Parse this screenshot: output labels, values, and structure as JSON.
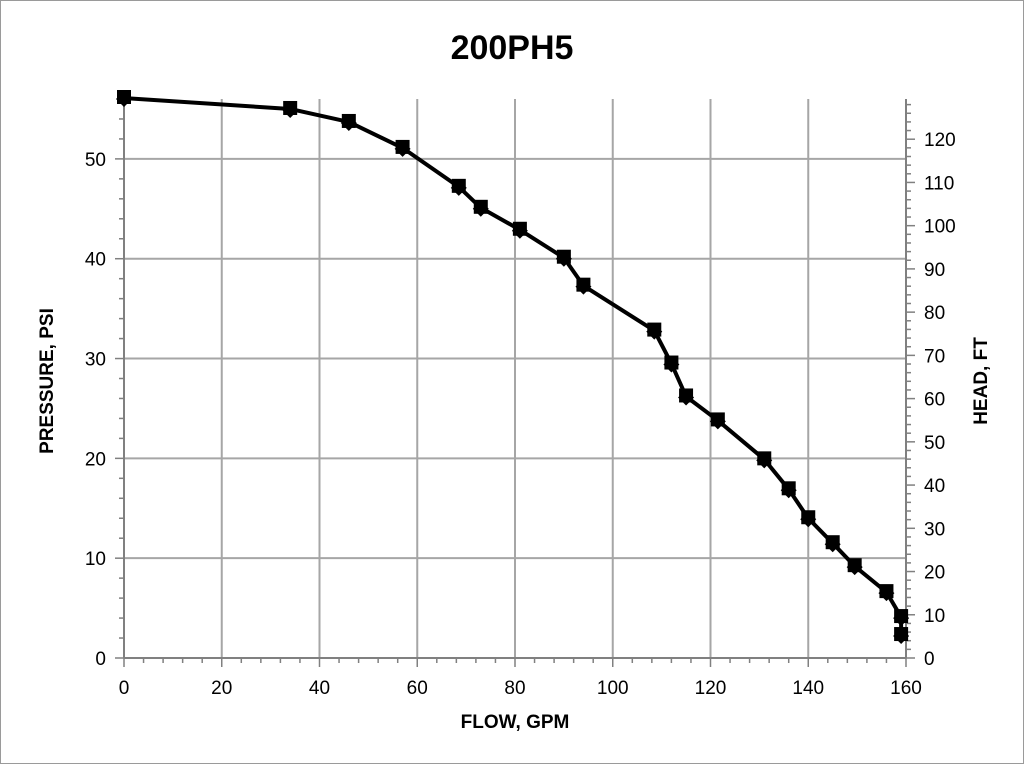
{
  "chart_data": {
    "type": "line",
    "title": "200PH5",
    "xlabel": "FLOW, GPM",
    "ylabel": "PRESSURE, PSI",
    "y2label": "HEAD, FT",
    "xlim": [
      0,
      160
    ],
    "ylim": [
      0,
      56
    ],
    "y2lim": [
      0,
      129.3
    ],
    "x_ticks": [
      "0",
      "20",
      "40",
      "60",
      "80",
      "100",
      "120",
      "140",
      "160"
    ],
    "y_ticks": [
      "0",
      "10",
      "20",
      "30",
      "40",
      "50"
    ],
    "y2_ticks": [
      "0",
      "10",
      "20",
      "30",
      "40",
      "50",
      "60",
      "70",
      "80",
      "90",
      "100",
      "110",
      "120"
    ],
    "grid": true,
    "legend": "none",
    "series": [
      {
        "marker": "square",
        "color": "#000000",
        "x": [
          0,
          34,
          46,
          57,
          68.5,
          73,
          81,
          90,
          94,
          108.5,
          112,
          115,
          121.5,
          131,
          136,
          140,
          145,
          149.5,
          156,
          159,
          159
        ],
        "y": [
          56.1,
          55.0,
          53.7,
          51.1,
          47.2,
          45.1,
          42.9,
          40.1,
          37.3,
          32.8,
          29.5,
          26.2,
          23.8,
          19.9,
          16.9,
          14.0,
          11.5,
          9.2,
          6.6,
          4.1,
          2.3
        ]
      }
    ]
  }
}
